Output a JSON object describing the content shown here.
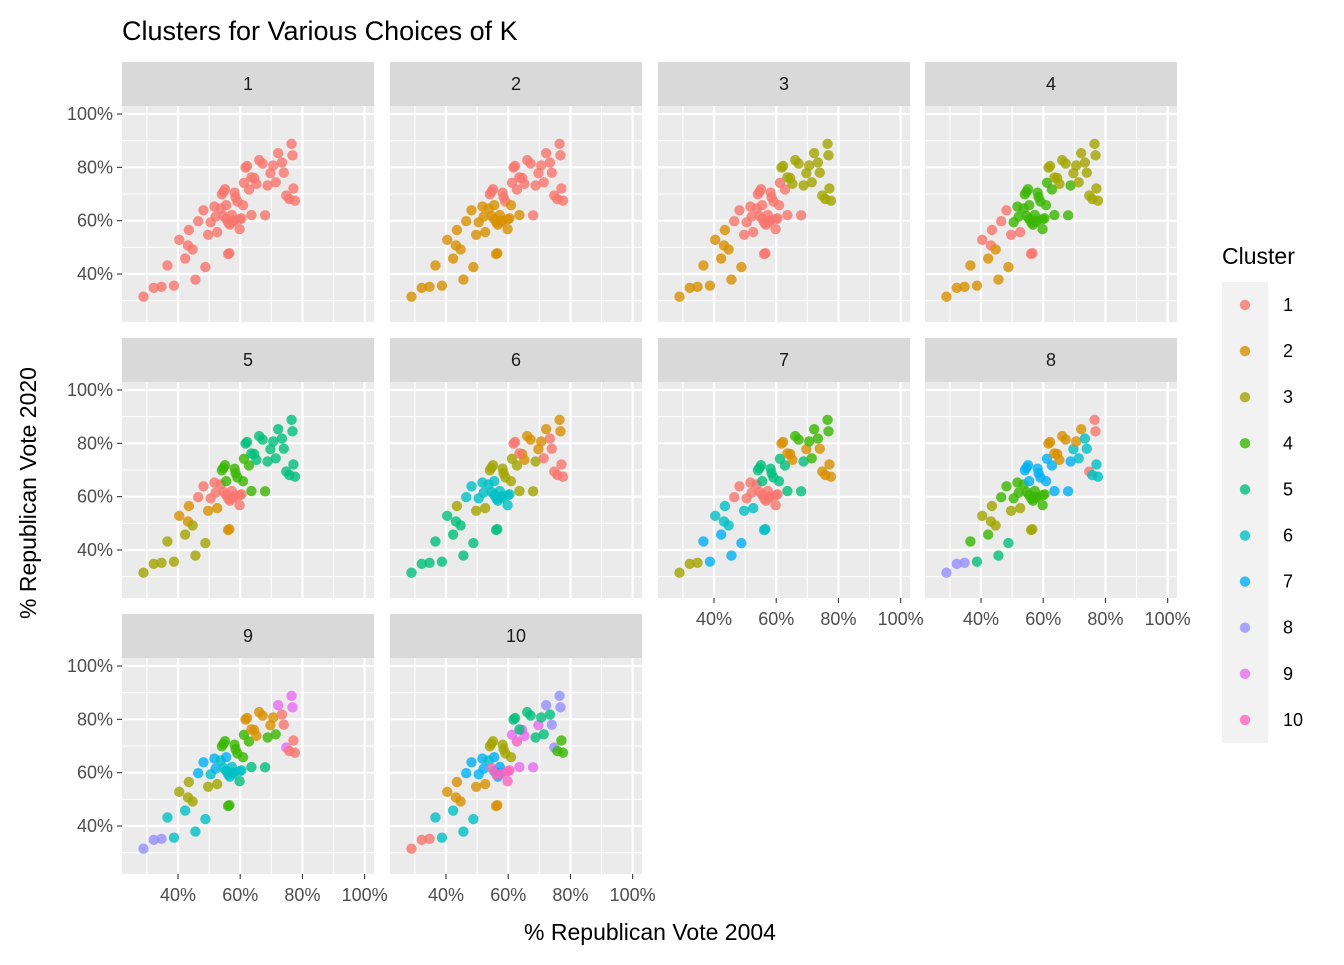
{
  "chart_data": {
    "type": "scatter",
    "title": "Clusters for Various Choices of K",
    "xlabel": "% Republican Vote 2004",
    "ylabel": "% Republican Vote 2020",
    "xlim": [
      0.22,
      1.03
    ],
    "ylim": [
      0.22,
      1.03
    ],
    "x_ticks": [
      0.4,
      0.6,
      0.8,
      1.0
    ],
    "x_tick_labels": [
      "40%",
      "60%",
      "80%",
      "100%"
    ],
    "y_ticks": [
      0.4,
      0.6,
      0.8,
      1.0
    ],
    "y_tick_labels": [
      "40%",
      "60%",
      "80%",
      "100%"
    ],
    "grid": true,
    "legend": {
      "title": "Cluster",
      "placement": "right",
      "entries": [
        {
          "label": "1",
          "color": "#F8766D"
        },
        {
          "label": "2",
          "color": "#D89000"
        },
        {
          "label": "3",
          "color": "#A3A500"
        },
        {
          "label": "4",
          "color": "#39B600"
        },
        {
          "label": "5",
          "color": "#00BF7D"
        },
        {
          "label": "6",
          "color": "#00BFC4"
        },
        {
          "label": "7",
          "color": "#00B0F6"
        },
        {
          "label": "8",
          "color": "#9590FF"
        },
        {
          "label": "9",
          "color": "#E76BF3"
        },
        {
          "label": "10",
          "color": "#FF62BC"
        }
      ]
    },
    "facet_labels": [
      "1",
      "2",
      "3",
      "4",
      "5",
      "6",
      "7",
      "8",
      "9",
      "10"
    ],
    "points": [
      [
        0.289,
        0.315
      ],
      [
        0.322,
        0.348
      ],
      [
        0.347,
        0.352
      ],
      [
        0.366,
        0.432
      ],
      [
        0.387,
        0.356
      ],
      [
        0.404,
        0.528
      ],
      [
        0.423,
        0.458
      ],
      [
        0.432,
        0.507
      ],
      [
        0.435,
        0.565
      ],
      [
        0.447,
        0.492
      ],
      [
        0.456,
        0.379
      ],
      [
        0.465,
        0.598
      ],
      [
        0.482,
        0.639
      ],
      [
        0.488,
        0.426
      ],
      [
        0.497,
        0.547
      ],
      [
        0.505,
        0.594
      ],
      [
        0.517,
        0.653
      ],
      [
        0.521,
        0.615
      ],
      [
        0.526,
        0.557
      ],
      [
        0.537,
        0.646
      ],
      [
        0.541,
        0.699
      ],
      [
        0.546,
        0.708
      ],
      [
        0.551,
        0.718
      ],
      [
        0.555,
        0.606
      ],
      [
        0.561,
        0.475
      ],
      [
        0.565,
        0.478
      ],
      [
        0.567,
        0.585
      ],
      [
        0.573,
        0.621
      ],
      [
        0.577,
        0.6
      ],
      [
        0.582,
        0.705
      ],
      [
        0.585,
        0.688
      ],
      [
        0.591,
        0.672
      ],
      [
        0.598,
        0.568
      ],
      [
        0.604,
        0.609
      ],
      [
        0.609,
        0.658
      ],
      [
        0.617,
        0.799
      ],
      [
        0.622,
        0.805
      ],
      [
        0.628,
        0.717
      ],
      [
        0.636,
        0.621
      ],
      [
        0.645,
        0.76
      ],
      [
        0.652,
        0.738
      ],
      [
        0.661,
        0.827
      ],
      [
        0.672,
        0.814
      ],
      [
        0.68,
        0.62
      ],
      [
        0.688,
        0.732
      ],
      [
        0.697,
        0.778
      ],
      [
        0.706,
        0.807
      ],
      [
        0.714,
        0.744
      ],
      [
        0.722,
        0.853
      ],
      [
        0.734,
        0.818
      ],
      [
        0.74,
        0.78
      ],
      [
        0.748,
        0.694
      ],
      [
        0.758,
        0.681
      ],
      [
        0.765,
        0.888
      ],
      [
        0.768,
        0.845
      ],
      [
        0.771,
        0.721
      ],
      [
        0.776,
        0.675
      ],
      [
        0.555,
        0.658
      ],
      [
        0.578,
        0.596
      ],
      [
        0.598,
        0.605
      ],
      [
        0.547,
        0.617
      ],
      [
        0.562,
        0.592
      ],
      [
        0.612,
        0.742
      ],
      [
        0.636,
        0.762
      ]
    ],
    "series": [
      {
        "facet": "1",
        "clusters": [
          1,
          1,
          1,
          1,
          1,
          1,
          1,
          1,
          1,
          1,
          1,
          1,
          1,
          1,
          1,
          1,
          1,
          1,
          1,
          1,
          1,
          1,
          1,
          1,
          1,
          1,
          1,
          1,
          1,
          1,
          1,
          1,
          1,
          1,
          1,
          1,
          1,
          1,
          1,
          1,
          1,
          1,
          1,
          1,
          1,
          1,
          1,
          1,
          1,
          1,
          1,
          1,
          1,
          1,
          1,
          1,
          1,
          1,
          1,
          1,
          1,
          1,
          1,
          1
        ]
      },
      {
        "facet": "2",
        "clusters": [
          2,
          2,
          2,
          2,
          2,
          2,
          2,
          2,
          2,
          2,
          2,
          2,
          2,
          2,
          2,
          2,
          2,
          2,
          2,
          2,
          1,
          1,
          1,
          2,
          2,
          2,
          2,
          2,
          2,
          1,
          1,
          1,
          2,
          2,
          2,
          1,
          1,
          1,
          2,
          1,
          1,
          1,
          1,
          1,
          1,
          1,
          1,
          1,
          1,
          1,
          1,
          1,
          1,
          1,
          1,
          1,
          1,
          2,
          2,
          2,
          2,
          2,
          1,
          1
        ]
      },
      {
        "facet": "3",
        "clusters": [
          2,
          2,
          2,
          2,
          2,
          2,
          2,
          2,
          2,
          2,
          2,
          1,
          1,
          2,
          1,
          1,
          1,
          1,
          1,
          1,
          1,
          1,
          1,
          1,
          1,
          1,
          1,
          1,
          1,
          1,
          1,
          1,
          1,
          1,
          1,
          3,
          3,
          1,
          1,
          3,
          3,
          3,
          3,
          1,
          3,
          3,
          3,
          3,
          3,
          3,
          3,
          3,
          3,
          3,
          3,
          3,
          3,
          1,
          1,
          1,
          1,
          1,
          1,
          3
        ]
      },
      {
        "facet": "4",
        "clusters": [
          2,
          2,
          2,
          2,
          2,
          1,
          2,
          1,
          1,
          2,
          2,
          1,
          1,
          2,
          1,
          4,
          4,
          4,
          1,
          4,
          4,
          4,
          4,
          4,
          1,
          1,
          4,
          4,
          4,
          4,
          4,
          4,
          4,
          4,
          4,
          3,
          3,
          4,
          4,
          3,
          3,
          3,
          3,
          4,
          4,
          3,
          3,
          3,
          3,
          3,
          3,
          3,
          3,
          3,
          3,
          3,
          3,
          4,
          4,
          4,
          4,
          4,
          4,
          3
        ]
      },
      {
        "facet": "5",
        "clusters": [
          3,
          3,
          3,
          3,
          3,
          2,
          3,
          2,
          2,
          3,
          3,
          1,
          1,
          3,
          2,
          1,
          1,
          1,
          2,
          1,
          4,
          4,
          4,
          1,
          2,
          2,
          1,
          1,
          1,
          4,
          4,
          4,
          1,
          1,
          4,
          5,
          5,
          4,
          4,
          5,
          5,
          5,
          5,
          4,
          5,
          5,
          5,
          5,
          5,
          5,
          5,
          5,
          5,
          5,
          5,
          5,
          5,
          4,
          1,
          1,
          1,
          1,
          4,
          5
        ]
      },
      {
        "facet": "6",
        "clusters": [
          5,
          5,
          5,
          5,
          5,
          5,
          5,
          5,
          3,
          5,
          5,
          6,
          6,
          5,
          3,
          6,
          6,
          6,
          3,
          6,
          3,
          3,
          3,
          6,
          5,
          5,
          6,
          6,
          6,
          3,
          3,
          3,
          6,
          6,
          3,
          1,
          1,
          3,
          3,
          2,
          2,
          2,
          2,
          3,
          3,
          2,
          2,
          1,
          2,
          1,
          1,
          1,
          1,
          2,
          2,
          1,
          1,
          6,
          6,
          6,
          6,
          6,
          3,
          1
        ]
      },
      {
        "facet": "7",
        "clusters": [
          3,
          3,
          3,
          7,
          7,
          6,
          7,
          6,
          6,
          6,
          7,
          1,
          1,
          7,
          6,
          1,
          1,
          1,
          6,
          1,
          5,
          5,
          5,
          1,
          6,
          6,
          1,
          1,
          1,
          5,
          5,
          5,
          1,
          1,
          5,
          2,
          2,
          5,
          5,
          2,
          2,
          4,
          4,
          5,
          5,
          2,
          4,
          4,
          4,
          4,
          2,
          2,
          2,
          4,
          4,
          2,
          2,
          5,
          1,
          1,
          1,
          1,
          5,
          2
        ]
      },
      {
        "facet": "8",
        "clusters": [
          8,
          8,
          8,
          4,
          5,
          3,
          4,
          3,
          3,
          3,
          5,
          4,
          4,
          5,
          3,
          4,
          4,
          4,
          3,
          4,
          7,
          7,
          7,
          4,
          3,
          3,
          4,
          4,
          4,
          7,
          7,
          7,
          4,
          4,
          7,
          2,
          2,
          7,
          7,
          2,
          2,
          2,
          2,
          7,
          7,
          6,
          2,
          6,
          2,
          6,
          6,
          1,
          6,
          1,
          1,
          6,
          6,
          7,
          4,
          4,
          4,
          4,
          7,
          2
        ]
      },
      {
        "facet": "9",
        "clusters": [
          8,
          8,
          8,
          6,
          6,
          3,
          6,
          3,
          3,
          3,
          6,
          7,
          7,
          6,
          3,
          6,
          7,
          7,
          3,
          6,
          4,
          4,
          4,
          7,
          4,
          4,
          6,
          6,
          6,
          4,
          4,
          4,
          5,
          6,
          4,
          2,
          2,
          4,
          5,
          2,
          2,
          2,
          2,
          5,
          4,
          2,
          2,
          4,
          9,
          1,
          1,
          9,
          1,
          9,
          9,
          1,
          1,
          7,
          6,
          6,
          6,
          6,
          4,
          2
        ]
      },
      {
        "facet": "10",
        "clusters": [
          1,
          1,
          1,
          6,
          6,
          2,
          6,
          2,
          2,
          2,
          6,
          7,
          7,
          6,
          2,
          7,
          7,
          7,
          2,
          6,
          3,
          3,
          3,
          7,
          2,
          2,
          7,
          7,
          7,
          3,
          3,
          3,
          10,
          10,
          3,
          5,
          5,
          10,
          9,
          9,
          9,
          5,
          5,
          9,
          5,
          9,
          5,
          5,
          8,
          5,
          8,
          8,
          4,
          8,
          8,
          4,
          4,
          7,
          10,
          10,
          10,
          10,
          9,
          5
        ]
      }
    ]
  }
}
